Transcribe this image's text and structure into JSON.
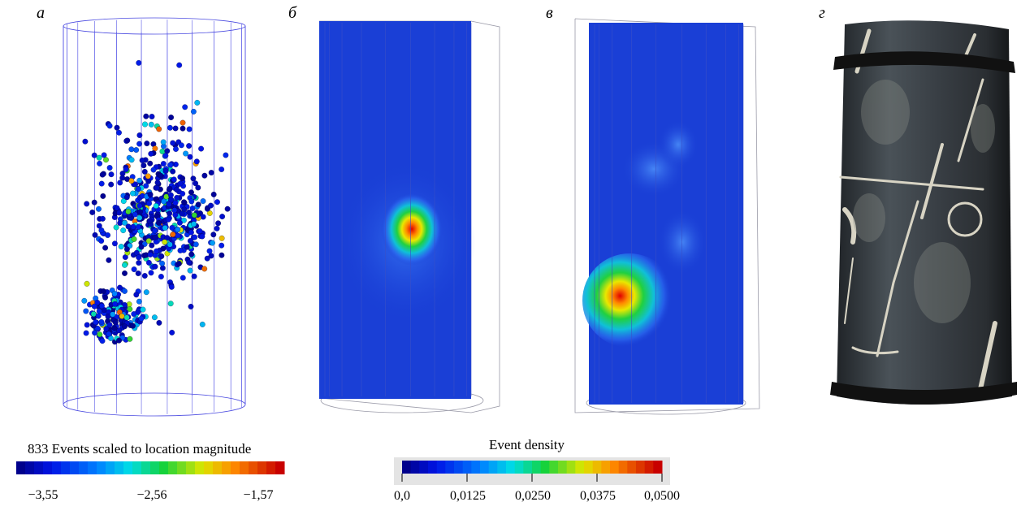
{
  "panels": {
    "a": {
      "label": "а"
    },
    "b": {
      "label": "б"
    },
    "c": {
      "label": "в"
    },
    "d": {
      "label": "г"
    }
  },
  "magnitude_scale": {
    "title": "833 Events scaled to location magnitude",
    "ticks": [
      "−3,55",
      "−2,56",
      "−1,57"
    ]
  },
  "density_scale": {
    "title": "Event density",
    "ticks": [
      "0,0",
      "0,0125",
      "0,0250",
      "0,0375",
      "0,0500"
    ]
  },
  "colors": {
    "frame": "#4a4ae0",
    "density_background": "#1a3fd6",
    "scale_low": "#00008b",
    "scale_mid": "#00d060",
    "scale_high": "#c00000"
  }
}
